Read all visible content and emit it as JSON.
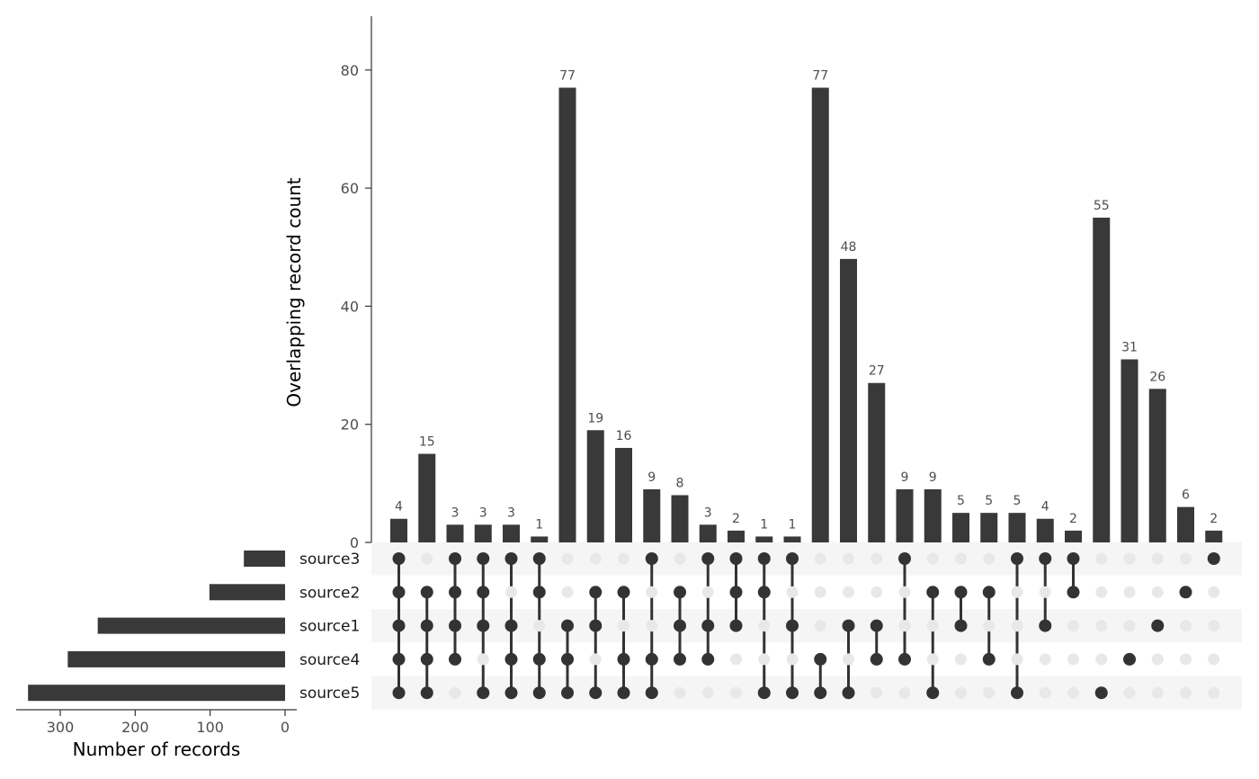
{
  "chart_data": {
    "type": "upset",
    "ylabel": "Overlapping record count",
    "ylim": [
      0,
      88
    ],
    "yticks": [
      0,
      20,
      40,
      60,
      80
    ],
    "set_size_xlabel": "Number of records",
    "set_size_xticks": [
      300,
      200,
      100,
      0
    ],
    "set_size_xlim": [
      360,
      0
    ],
    "sets": [
      "source3",
      "source2",
      "source1",
      "source4",
      "source5"
    ],
    "set_sizes": [
      55,
      101,
      250,
      290,
      343
    ],
    "intersections": [
      {
        "sets": [
          "source3",
          "source2",
          "source1",
          "source4",
          "source5"
        ],
        "count": 4
      },
      {
        "sets": [
          "source2",
          "source1",
          "source4",
          "source5"
        ],
        "count": 15
      },
      {
        "sets": [
          "source3",
          "source2",
          "source1",
          "source4"
        ],
        "count": 3
      },
      {
        "sets": [
          "source3",
          "source2",
          "source1",
          "source5"
        ],
        "count": 3
      },
      {
        "sets": [
          "source3",
          "source1",
          "source4",
          "source5"
        ],
        "count": 3
      },
      {
        "sets": [
          "source3",
          "source2",
          "source4",
          "source5"
        ],
        "count": 1
      },
      {
        "sets": [
          "source1",
          "source4",
          "source5"
        ],
        "count": 77
      },
      {
        "sets": [
          "source2",
          "source1",
          "source5"
        ],
        "count": 19
      },
      {
        "sets": [
          "source2",
          "source4",
          "source5"
        ],
        "count": 16
      },
      {
        "sets": [
          "source3",
          "source4",
          "source5"
        ],
        "count": 9
      },
      {
        "sets": [
          "source2",
          "source1",
          "source4"
        ],
        "count": 8
      },
      {
        "sets": [
          "source3",
          "source1",
          "source4"
        ],
        "count": 3
      },
      {
        "sets": [
          "source3",
          "source2",
          "source1"
        ],
        "count": 2
      },
      {
        "sets": [
          "source3",
          "source2",
          "source5"
        ],
        "count": 1
      },
      {
        "sets": [
          "source3",
          "source1",
          "source5"
        ],
        "count": 1
      },
      {
        "sets": [
          "source4",
          "source5"
        ],
        "count": 77
      },
      {
        "sets": [
          "source1",
          "source5"
        ],
        "count": 48
      },
      {
        "sets": [
          "source1",
          "source4"
        ],
        "count": 27
      },
      {
        "sets": [
          "source3",
          "source4"
        ],
        "count": 9
      },
      {
        "sets": [
          "source2",
          "source5"
        ],
        "count": 9
      },
      {
        "sets": [
          "source2",
          "source1"
        ],
        "count": 5
      },
      {
        "sets": [
          "source2",
          "source4"
        ],
        "count": 5
      },
      {
        "sets": [
          "source3",
          "source5"
        ],
        "count": 5
      },
      {
        "sets": [
          "source3",
          "source1"
        ],
        "count": 4
      },
      {
        "sets": [
          "source3",
          "source2"
        ],
        "count": 2
      },
      {
        "sets": [
          "source5"
        ],
        "count": 55
      },
      {
        "sets": [
          "source4"
        ],
        "count": 31
      },
      {
        "sets": [
          "source1"
        ],
        "count": 26
      },
      {
        "sets": [
          "source2"
        ],
        "count": 6
      },
      {
        "sets": [
          "source3"
        ],
        "count": 2
      }
    ],
    "colors": {
      "bar": "#393939",
      "dot_active": "#333333",
      "dot_inactive": "#e8e8e8",
      "stripe": "#f5f5f5",
      "axis": "#333333"
    }
  }
}
